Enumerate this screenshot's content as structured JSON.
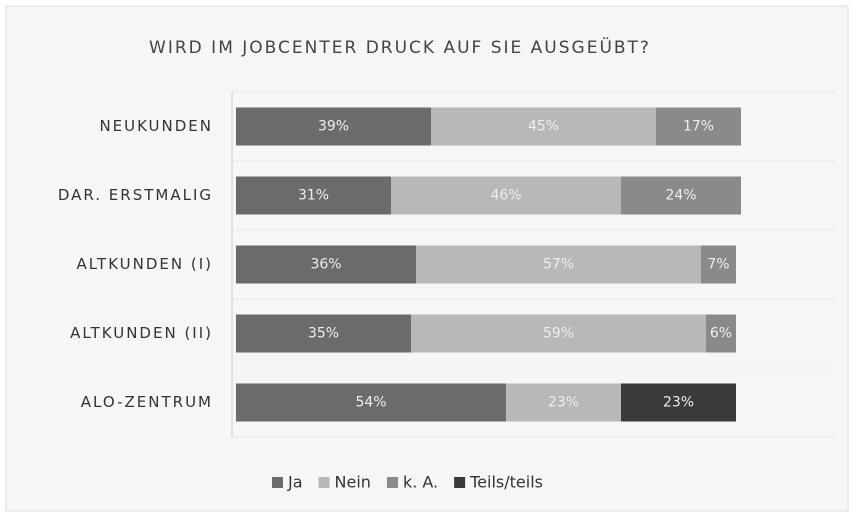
{
  "chart_data": {
    "type": "stacked-bar-horizontal",
    "title": "WIRD IM JOBCENTER DRUCK AUF SIE AUSGEÜBT?",
    "categories": [
      "NEUKUNDEN",
      "DAR. ERSTMALIG",
      "ALTKUNDEN (I)",
      "ALTKUNDEN (II)",
      "ALO-ZENTRUM"
    ],
    "series": [
      {
        "name": "Ja",
        "color": "#6b6b6b",
        "values": [
          39,
          31,
          36,
          35,
          54
        ],
        "value_labels": [
          "39%",
          "31%",
          "36%",
          "35%",
          "54%"
        ]
      },
      {
        "name": "Nein",
        "color": "#b8b8b8",
        "values": [
          45,
          46,
          57,
          59,
          23
        ],
        "value_labels": [
          "45%",
          "46%",
          "57%",
          "59%",
          "23%"
        ]
      },
      {
        "name": "k. A.",
        "color": "#8a8a8a",
        "values": [
          17,
          24,
          7,
          6,
          null
        ],
        "value_labels": [
          "17%",
          "24%",
          "7%",
          "6%",
          null
        ]
      },
      {
        "name": "Teils/teils",
        "color": "#3a3a3a",
        "values": [
          null,
          null,
          null,
          null,
          23
        ],
        "value_labels": [
          null,
          null,
          null,
          null,
          "23%"
        ]
      }
    ],
    "legend": "bottom"
  }
}
